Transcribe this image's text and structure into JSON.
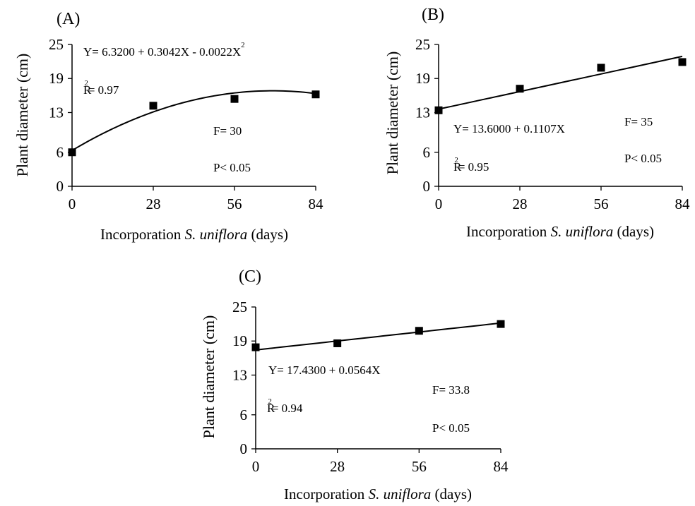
{
  "chart_data": [
    {
      "type": "scatter",
      "panel_label": "(A)",
      "xlabel": {
        "pre": "Incorporation ",
        "italic": "S. uniflora",
        "post": " (days)"
      },
      "ylabel": "Plant diameter (cm)",
      "x_ticks": [
        0,
        28,
        56,
        84
      ],
      "y_ticks": [
        0,
        6,
        13,
        19,
        25
      ],
      "xlim": [
        0,
        84
      ],
      "ylim": [
        0,
        25
      ],
      "points": {
        "x": [
          0,
          28,
          56,
          84
        ],
        "y": [
          6.0,
          14.2,
          15.4,
          16.2
        ]
      },
      "fit": {
        "kind": "quadratic",
        "a": 6.32,
        "b": 0.3042,
        "c": -0.0022
      },
      "equation": {
        "main": "Y= 6.3200 + 0.3042X - 0.0022X",
        "sup": "2"
      },
      "r2": {
        "base": "R",
        "sup": "2",
        "rest": "= 0.97"
      },
      "f_text": "F= 30",
      "p_text": "P< 0.05"
    },
    {
      "type": "scatter",
      "panel_label": "(B)",
      "xlabel": {
        "pre": "Incorporation ",
        "italic": "S. uniflora",
        "post": " (days)"
      },
      "ylabel": "Plant diameter (cm)",
      "x_ticks": [
        0,
        28,
        56,
        84
      ],
      "y_ticks": [
        0,
        6,
        13,
        19,
        25
      ],
      "xlim": [
        0,
        84
      ],
      "ylim": [
        0,
        25
      ],
      "points": {
        "x": [
          0,
          28,
          56,
          84
        ],
        "y": [
          13.4,
          17.2,
          20.9,
          21.9
        ]
      },
      "fit": {
        "kind": "linear",
        "a": 13.6,
        "b": 0.1107
      },
      "equation": {
        "main": "Y= 13.6000 + 0.1107X",
        "sup": ""
      },
      "r2": {
        "base": "R",
        "sup": "2",
        "rest": "= 0.95"
      },
      "f_text": "F= 35",
      "p_text": "P< 0.05"
    },
    {
      "type": "scatter",
      "panel_label": "(C)",
      "xlabel": {
        "pre": "Incorporation ",
        "italic": "S. uniflora",
        "post": " (days)"
      },
      "ylabel": "Plant diameter (cm)",
      "x_ticks": [
        0,
        28,
        56,
        84
      ],
      "y_ticks": [
        0,
        6,
        13,
        19,
        25
      ],
      "xlim": [
        0,
        84
      ],
      "ylim": [
        0,
        25
      ],
      "points": {
        "x": [
          0,
          28,
          56,
          84
        ],
        "y": [
          17.9,
          18.6,
          20.8,
          22.0
        ]
      },
      "fit": {
        "kind": "linear",
        "a": 17.43,
        "b": 0.0564
      },
      "equation": {
        "main": "Y= 17.4300 + 0.0564X",
        "sup": ""
      },
      "r2": {
        "base": "R",
        "sup": "2",
        "rest": "= 0.94"
      },
      "f_text": "F= 33.8",
      "p_text": "P< 0.05"
    }
  ]
}
